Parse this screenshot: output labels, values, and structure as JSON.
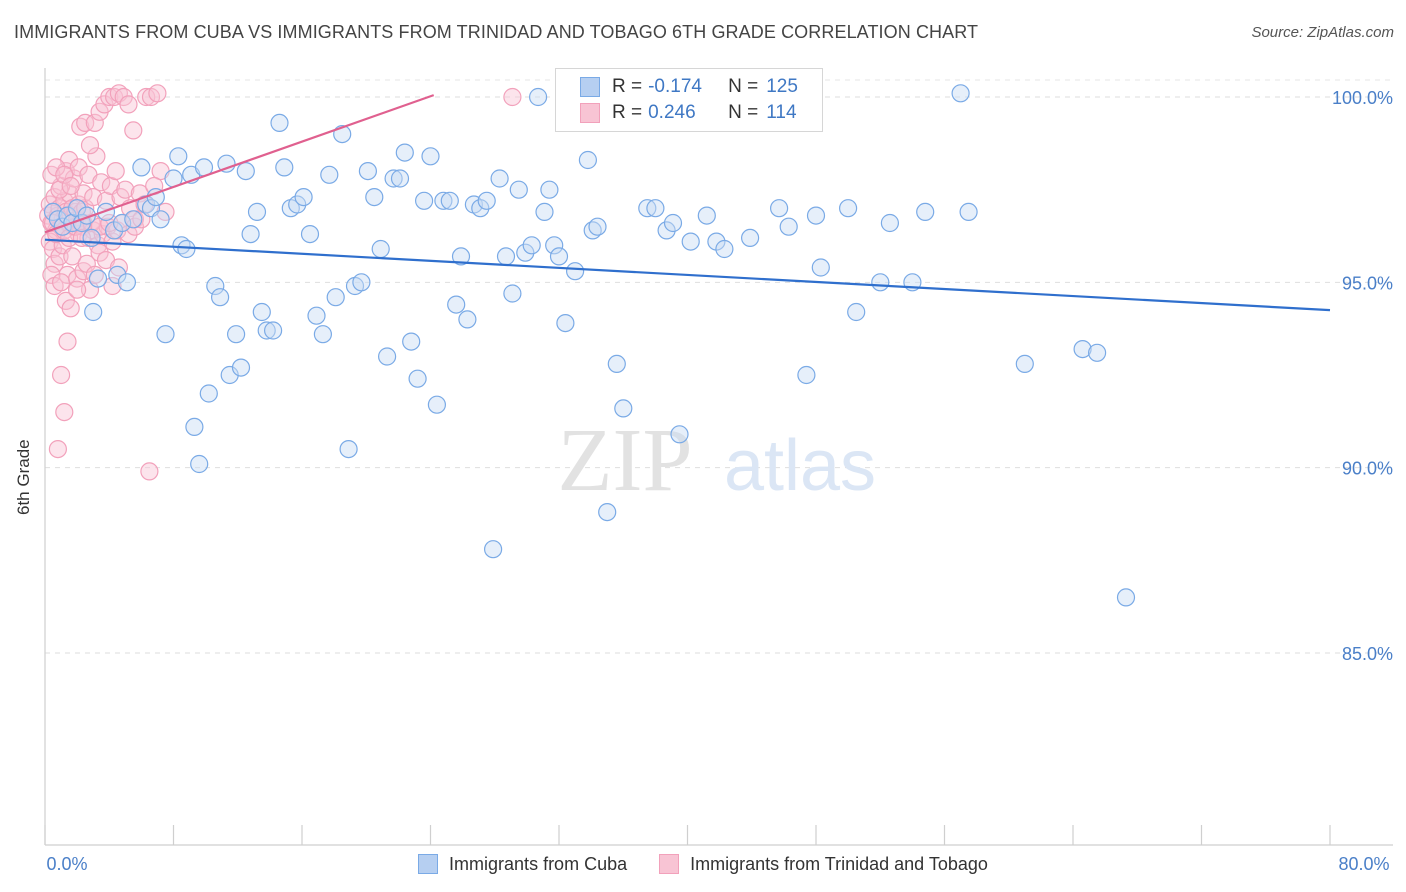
{
  "chart_data": {
    "type": "scatter",
    "title": "IMMIGRANTS FROM CUBA VS IMMIGRANTS FROM TRINIDAD AND TOBAGO 6TH GRADE CORRELATION CHART",
    "source": "Source: ZipAtlas.com",
    "xlabel": "",
    "ylabel": "6th Grade",
    "xlim": [
      0,
      80
    ],
    "ylim": [
      80,
      100.5
    ],
    "x_tick_labels": [
      "0.0%",
      "80.0%"
    ],
    "y_ticks": [
      85,
      90,
      95,
      100
    ],
    "y_tick_labels": [
      "85.0%",
      "90.0%",
      "95.0%",
      "100.0%"
    ],
    "grid": true,
    "watermark": {
      "left": "ZIP",
      "right": "atlas"
    },
    "legend_stats": [
      {
        "r_label": "R =",
        "r_value": "-0.174",
        "n_label": "N =",
        "n_value": "125"
      },
      {
        "r_label": "R =",
        "r_value": "0.246",
        "n_label": "N =",
        "n_value": "114"
      }
    ],
    "series": [
      {
        "name": "Immigrants from Cuba",
        "color": "#7aaae6",
        "line_color": "#2f6fcd",
        "trend": {
          "x": [
            0,
            80
          ],
          "y": [
            96.15,
            94.25
          ]
        },
        "points": [
          [
            0.5,
            96.9
          ],
          [
            0.8,
            96.7
          ],
          [
            1.1,
            96.5
          ],
          [
            1.4,
            96.8
          ],
          [
            1.7,
            96.6
          ],
          [
            2.0,
            97.0
          ],
          [
            2.3,
            96.6
          ],
          [
            2.6,
            96.8
          ],
          [
            2.9,
            96.2
          ],
          [
            3.3,
            95.1
          ],
          [
            3.0,
            94.2
          ],
          [
            3.8,
            96.9
          ],
          [
            4.3,
            96.4
          ],
          [
            4.8,
            96.6
          ],
          [
            4.5,
            95.2
          ],
          [
            5.1,
            95.0
          ],
          [
            5.5,
            96.7
          ],
          [
            6.0,
            98.1
          ],
          [
            6.3,
            97.1
          ],
          [
            6.6,
            97.0
          ],
          [
            6.9,
            97.3
          ],
          [
            7.2,
            96.7
          ],
          [
            7.5,
            93.6
          ],
          [
            8.0,
            97.8
          ],
          [
            8.3,
            98.4
          ],
          [
            8.5,
            96.0
          ],
          [
            8.8,
            95.9
          ],
          [
            9.1,
            97.9
          ],
          [
            9.3,
            91.1
          ],
          [
            9.6,
            90.1
          ],
          [
            9.9,
            98.1
          ],
          [
            10.2,
            92.0
          ],
          [
            10.6,
            94.9
          ],
          [
            10.9,
            94.6
          ],
          [
            11.3,
            98.2
          ],
          [
            11.5,
            92.5
          ],
          [
            11.9,
            93.6
          ],
          [
            12.2,
            92.7
          ],
          [
            12.5,
            98.0
          ],
          [
            12.8,
            96.3
          ],
          [
            13.2,
            96.9
          ],
          [
            13.5,
            94.2
          ],
          [
            13.8,
            93.7
          ],
          [
            14.2,
            93.7
          ],
          [
            14.6,
            99.3
          ],
          [
            14.9,
            98.1
          ],
          [
            15.3,
            97.0
          ],
          [
            15.7,
            97.1
          ],
          [
            16.1,
            97.3
          ],
          [
            16.5,
            96.3
          ],
          [
            16.9,
            94.1
          ],
          [
            17.3,
            93.6
          ],
          [
            17.7,
            97.9
          ],
          [
            18.1,
            94.6
          ],
          [
            18.5,
            99.0
          ],
          [
            18.9,
            90.5
          ],
          [
            19.3,
            94.9
          ],
          [
            19.7,
            95.0
          ],
          [
            20.1,
            98.0
          ],
          [
            20.5,
            97.3
          ],
          [
            20.9,
            95.9
          ],
          [
            21.3,
            93.0
          ],
          [
            21.7,
            97.8
          ],
          [
            22.1,
            97.8
          ],
          [
            22.4,
            98.5
          ],
          [
            22.8,
            93.4
          ],
          [
            23.2,
            92.4
          ],
          [
            23.6,
            97.2
          ],
          [
            24.0,
            98.4
          ],
          [
            24.4,
            91.7
          ],
          [
            24.8,
            97.2
          ],
          [
            25.2,
            97.2
          ],
          [
            25.6,
            94.4
          ],
          [
            25.9,
            95.7
          ],
          [
            26.3,
            94.0
          ],
          [
            26.7,
            97.1
          ],
          [
            27.1,
            97.0
          ],
          [
            27.5,
            97.2
          ],
          [
            27.9,
            87.8
          ],
          [
            28.3,
            97.8
          ],
          [
            28.7,
            95.7
          ],
          [
            29.1,
            94.7
          ],
          [
            29.5,
            97.5
          ],
          [
            29.9,
            95.8
          ],
          [
            30.3,
            96.0
          ],
          [
            30.7,
            100.0
          ],
          [
            31.1,
            96.9
          ],
          [
            31.4,
            97.5
          ],
          [
            31.7,
            96.0
          ],
          [
            32.0,
            95.7
          ],
          [
            32.4,
            93.9
          ],
          [
            33.0,
            95.3
          ],
          [
            33.8,
            98.3
          ],
          [
            34.1,
            96.4
          ],
          [
            34.4,
            96.5
          ],
          [
            35.0,
            88.8
          ],
          [
            35.6,
            92.8
          ],
          [
            36.0,
            91.6
          ],
          [
            37.5,
            97.0
          ],
          [
            38.0,
            97.0
          ],
          [
            38.7,
            96.4
          ],
          [
            39.1,
            96.6
          ],
          [
            39.5,
            90.9
          ],
          [
            40.2,
            96.1
          ],
          [
            41.2,
            96.8
          ],
          [
            41.8,
            96.1
          ],
          [
            42.3,
            95.9
          ],
          [
            43.9,
            96.2
          ],
          [
            45.7,
            97.0
          ],
          [
            46.3,
            96.5
          ],
          [
            47.4,
            92.5
          ],
          [
            48.0,
            96.8
          ],
          [
            48.3,
            95.4
          ],
          [
            50.0,
            97.0
          ],
          [
            50.5,
            94.2
          ],
          [
            52.0,
            95.0
          ],
          [
            52.6,
            96.6
          ],
          [
            54.0,
            95.0
          ],
          [
            54.8,
            96.9
          ],
          [
            57.0,
            100.1
          ],
          [
            57.5,
            96.9
          ],
          [
            61.0,
            92.8
          ],
          [
            64.6,
            93.2
          ],
          [
            65.5,
            93.1
          ],
          [
            67.3,
            86.5
          ]
        ]
      },
      {
        "name": "Immigrants from Trinidad and Tobago",
        "color": "#f2a1bb",
        "line_color": "#e0608f",
        "trend": {
          "x": [
            0,
            24.2
          ],
          "y": [
            96.35,
            100.05
          ]
        },
        "points": [
          [
            0.2,
            96.8
          ],
          [
            0.3,
            97.1
          ],
          [
            0.4,
            96.6
          ],
          [
            0.5,
            96.9
          ],
          [
            0.6,
            97.3
          ],
          [
            0.7,
            96.4
          ],
          [
            0.8,
            96.8
          ],
          [
            0.9,
            97.0
          ],
          [
            1.0,
            96.5
          ],
          [
            1.1,
            96.7
          ],
          [
            1.2,
            97.2
          ],
          [
            1.3,
            96.9
          ],
          [
            1.4,
            96.6
          ],
          [
            1.5,
            97.4
          ],
          [
            1.6,
            96.8
          ],
          [
            1.7,
            97.0
          ],
          [
            1.8,
            96.5
          ],
          [
            1.9,
            96.9
          ],
          [
            2.0,
            96.7
          ],
          [
            2.1,
            97.1
          ],
          [
            2.2,
            96.6
          ],
          [
            2.3,
            96.9
          ],
          [
            2.4,
            96.6
          ],
          [
            2.5,
            97.0
          ],
          [
            0.3,
            96.1
          ],
          [
            0.5,
            95.9
          ],
          [
            0.6,
            95.5
          ],
          [
            0.9,
            95.7
          ],
          [
            1.1,
            96.0
          ],
          [
            1.4,
            95.2
          ],
          [
            1.7,
            95.7
          ],
          [
            0.4,
            95.2
          ],
          [
            0.6,
            94.9
          ],
          [
            1.0,
            95.0
          ],
          [
            1.3,
            94.5
          ],
          [
            1.6,
            94.3
          ],
          [
            2.0,
            95.1
          ],
          [
            2.4,
            95.3
          ],
          [
            2.8,
            94.8
          ],
          [
            1.0,
            97.6
          ],
          [
            1.3,
            98.0
          ],
          [
            1.5,
            98.3
          ],
          [
            1.8,
            97.8
          ],
          [
            2.1,
            98.1
          ],
          [
            2.4,
            97.4
          ],
          [
            2.7,
            97.9
          ],
          [
            3.0,
            97.3
          ],
          [
            3.2,
            98.4
          ],
          [
            3.5,
            97.7
          ],
          [
            3.8,
            97.2
          ],
          [
            4.1,
            97.6
          ],
          [
            4.4,
            98.0
          ],
          [
            4.7,
            97.3
          ],
          [
            5.0,
            97.5
          ],
          [
            5.3,
            97.0
          ],
          [
            5.6,
            96.7
          ],
          [
            5.9,
            97.4
          ],
          [
            6.2,
            97.1
          ],
          [
            2.2,
            99.2
          ],
          [
            2.5,
            99.3
          ],
          [
            2.8,
            98.7
          ],
          [
            3.1,
            99.3
          ],
          [
            3.4,
            99.6
          ],
          [
            3.7,
            99.8
          ],
          [
            4.0,
            100.0
          ],
          [
            4.3,
            100.0
          ],
          [
            4.6,
            100.1
          ],
          [
            4.9,
            100.0
          ],
          [
            5.2,
            99.8
          ],
          [
            5.5,
            99.1
          ],
          [
            6.3,
            100.0
          ],
          [
            6.6,
            100.0
          ],
          [
            7.0,
            100.1
          ],
          [
            2.1,
            96.3
          ],
          [
            2.4,
            96.5
          ],
          [
            2.7,
            96.2
          ],
          [
            3.0,
            96.4
          ],
          [
            3.3,
            96.0
          ],
          [
            3.6,
            96.3
          ],
          [
            3.9,
            96.5
          ],
          [
            4.2,
            96.1
          ],
          [
            4.5,
            96.4
          ],
          [
            4.8,
            96.6
          ],
          [
            5.2,
            96.3
          ],
          [
            5.6,
            96.5
          ],
          [
            6.0,
            96.7
          ],
          [
            1.0,
            92.5
          ],
          [
            1.2,
            91.5
          ],
          [
            1.4,
            93.4
          ],
          [
            0.8,
            90.5
          ],
          [
            6.5,
            89.9
          ],
          [
            2.0,
            94.8
          ],
          [
            2.6,
            95.5
          ],
          [
            3.1,
            95.2
          ],
          [
            3.4,
            95.8
          ],
          [
            3.8,
            95.6
          ],
          [
            4.2,
            94.9
          ],
          [
            4.6,
            95.4
          ],
          [
            0.4,
            97.9
          ],
          [
            0.7,
            98.1
          ],
          [
            0.9,
            97.5
          ],
          [
            1.2,
            97.9
          ],
          [
            1.6,
            97.6
          ],
          [
            0.5,
            96.6
          ],
          [
            0.7,
            96.3
          ],
          [
            1.2,
            96.4
          ],
          [
            1.5,
            96.2
          ],
          [
            1.9,
            96.5
          ],
          [
            2.3,
            96.2
          ],
          [
            2.9,
            96.6
          ],
          [
            3.4,
            96.5
          ],
          [
            4.0,
            96.6
          ],
          [
            29.1,
            100.0
          ],
          [
            7.2,
            98.0
          ],
          [
            6.8,
            97.6
          ],
          [
            7.5,
            96.9
          ]
        ]
      }
    ]
  }
}
